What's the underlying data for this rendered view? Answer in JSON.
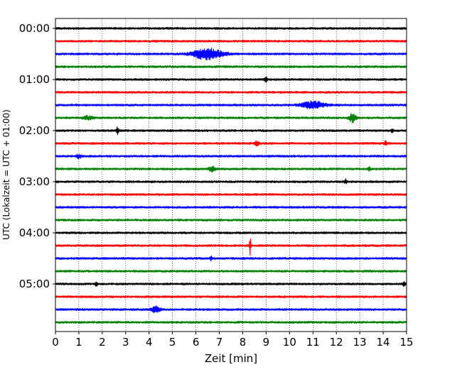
{
  "chart_data": {
    "type": "line",
    "subtype": "helicorder",
    "xlabel": "Zeit  [min]",
    "ylabel": "UTC (Lokalzeit = UTC + 01:00)",
    "xlim": [
      0,
      15
    ],
    "x_ticks": [
      "0",
      "1",
      "2",
      "3",
      "4",
      "5",
      "6",
      "7",
      "8",
      "9",
      "10",
      "11",
      "12",
      "13",
      "14",
      "15"
    ],
    "grid": "vertical-dotted",
    "colors": [
      "#000000",
      "#ff0000",
      "#0000ff",
      "#008000"
    ],
    "trace_interval_min": 15,
    "trace_count": 24,
    "y_tick_labels": [
      "00:00",
      "01:00",
      "02:00",
      "03:00",
      "04:00",
      "05:00"
    ],
    "y_tick_trace_index": [
      0,
      4,
      8,
      12,
      16,
      20
    ],
    "events": [
      {
        "trace": 2,
        "x_min": 6.5,
        "width_min": 1.8,
        "amplitude": 7.5,
        "label": ""
      },
      {
        "trace": 4,
        "x_min": 9.0,
        "width_min": 0.15,
        "amplitude": 4.5,
        "label": ""
      },
      {
        "trace": 6,
        "x_min": 11.0,
        "width_min": 1.4,
        "amplitude": 5.0,
        "label": ""
      },
      {
        "trace": 7,
        "x_min": 1.4,
        "width_min": 0.6,
        "amplitude": 2.5,
        "label": ""
      },
      {
        "trace": 7,
        "x_min": 12.7,
        "width_min": 0.4,
        "amplitude": 6.5,
        "label": ""
      },
      {
        "trace": 8,
        "x_min": 2.65,
        "width_min": 0.15,
        "amplitude": 4.5,
        "label": ""
      },
      {
        "trace": 8,
        "x_min": 14.4,
        "width_min": 0.15,
        "amplitude": 3.5,
        "label": ""
      },
      {
        "trace": 9,
        "x_min": 8.6,
        "width_min": 0.3,
        "amplitude": 2.5,
        "label": ""
      },
      {
        "trace": 9,
        "x_min": 14.1,
        "width_min": 0.15,
        "amplitude": 3.5,
        "label": ""
      },
      {
        "trace": 10,
        "x_min": 1.0,
        "width_min": 0.3,
        "amplitude": 2.5,
        "label": ""
      },
      {
        "trace": 11,
        "x_min": 6.7,
        "width_min": 0.35,
        "amplitude": 4.0,
        "label": ""
      },
      {
        "trace": 11,
        "x_min": 13.4,
        "width_min": 0.15,
        "amplitude": 3.5,
        "label": ""
      },
      {
        "trace": 12,
        "x_min": 12.4,
        "width_min": 0.15,
        "amplitude": 3.0,
        "label": ""
      },
      {
        "trace": 17,
        "x_min": 8.32,
        "width_min": 0.08,
        "amplitude": 13.0,
        "label": ""
      },
      {
        "trace": 18,
        "x_min": 6.65,
        "width_min": 0.1,
        "amplitude": 3.5,
        "label": ""
      },
      {
        "trace": 20,
        "x_min": 1.75,
        "width_min": 0.12,
        "amplitude": 4.0,
        "label": ""
      },
      {
        "trace": 20,
        "x_min": 14.9,
        "width_min": 0.15,
        "amplitude": 3.0,
        "label": ""
      },
      {
        "trace": 22,
        "x_min": 4.3,
        "width_min": 0.5,
        "amplitude": 4.5,
        "label": ""
      }
    ]
  }
}
